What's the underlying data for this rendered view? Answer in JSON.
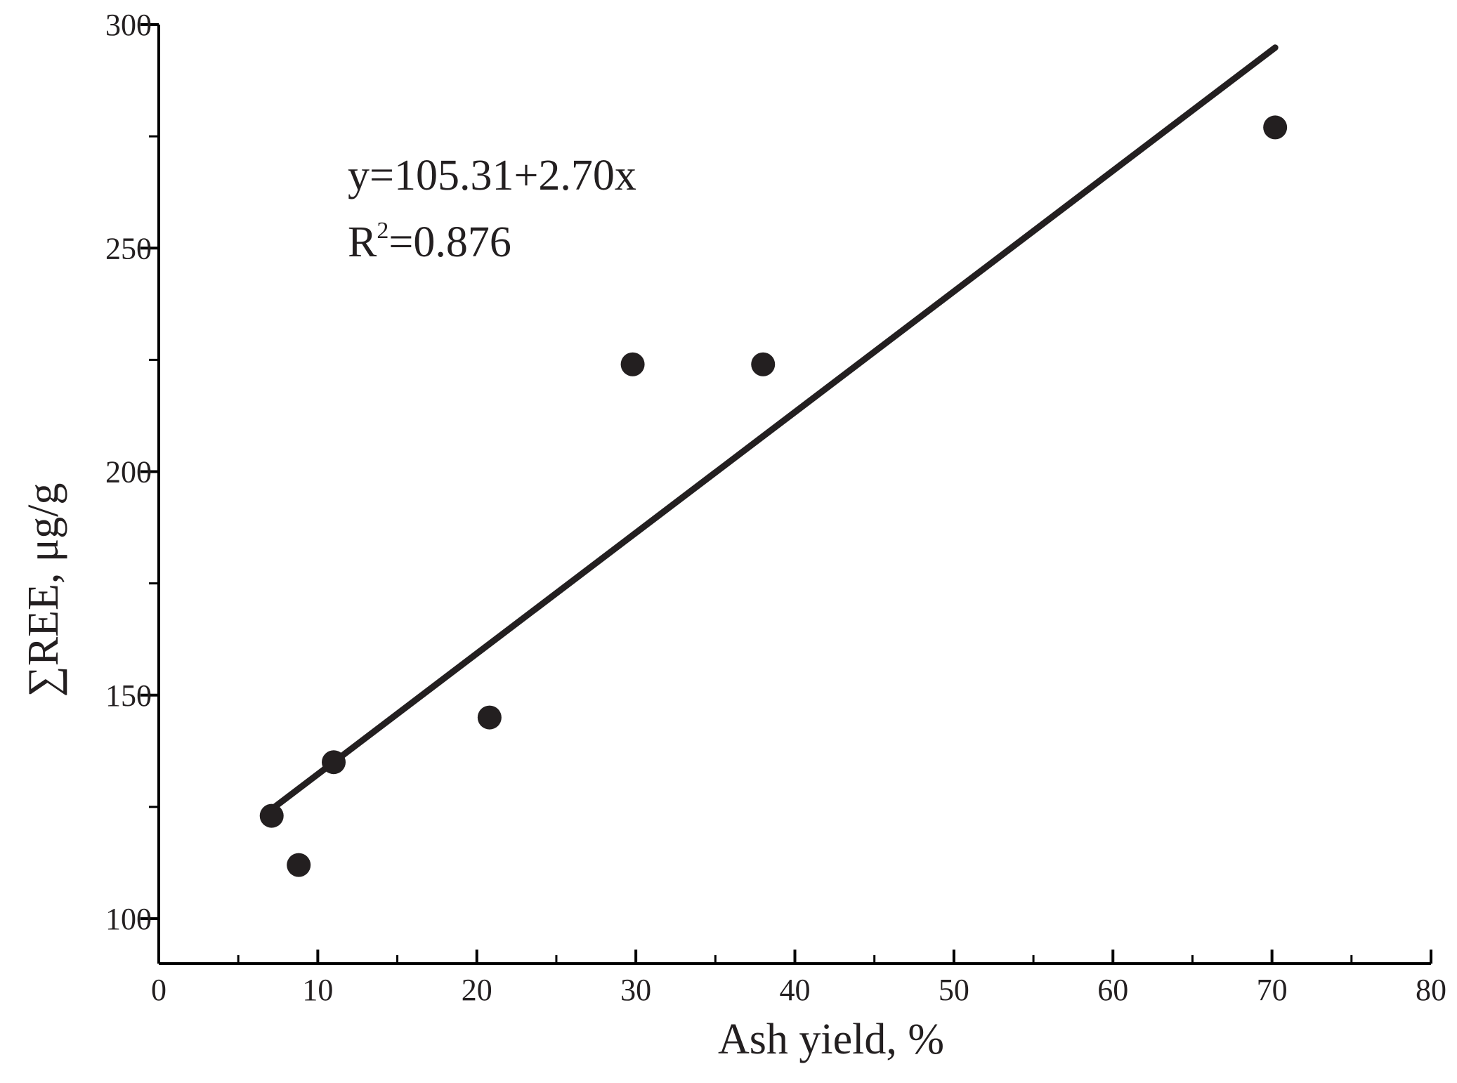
{
  "chart_data": {
    "type": "scatter",
    "xlabel": "Ash yield, %",
    "ylabel": "∑REE, μg/g",
    "xlim": [
      0,
      80
    ],
    "ylim": [
      90,
      300
    ],
    "x_ticks": [
      0,
      10,
      20,
      30,
      40,
      50,
      60,
      70,
      80
    ],
    "y_ticks": [
      100,
      150,
      200,
      250,
      300
    ],
    "x_minor_step": 5,
    "y_minor_step": 25,
    "grid": false,
    "series": [
      {
        "points": [
          {
            "x": 7.1,
            "y": 123
          },
          {
            "x": 8.8,
            "y": 112
          },
          {
            "x": 11.0,
            "y": 135
          },
          {
            "x": 20.8,
            "y": 145
          },
          {
            "x": 29.8,
            "y": 224
          },
          {
            "x": 38.0,
            "y": 224
          },
          {
            "x": 70.2,
            "y": 277
          }
        ]
      }
    ],
    "fit_line": {
      "intercept": 105.31,
      "slope": 2.7,
      "x_range": [
        7.1,
        70.2
      ]
    },
    "annotation": {
      "equation": "y=105.31+2.70x",
      "r2_prefix": "R",
      "r2_superscript": "2",
      "r2_value": "=0.876"
    },
    "colors": {
      "marks": "#231f20",
      "axis": "#000000"
    }
  }
}
